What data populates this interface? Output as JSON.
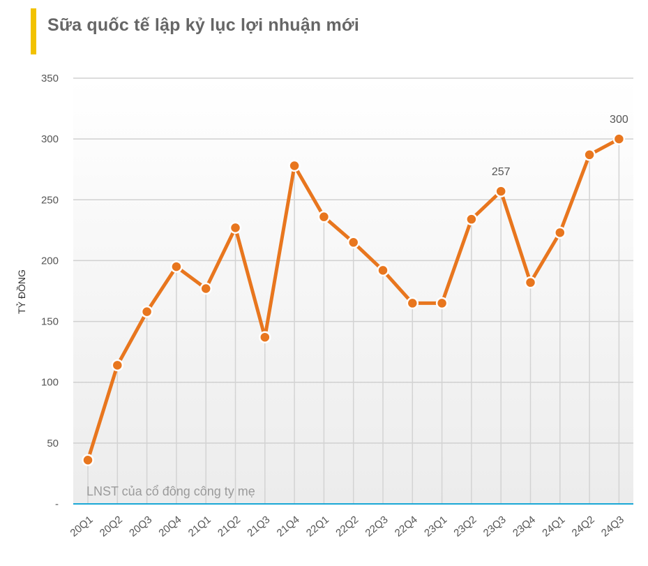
{
  "chart_data": {
    "type": "line",
    "title": "Sữa quốc tế lập kỷ lục lợi nhuận mới",
    "ylabel": "TỶ ĐỒNG",
    "xlabel": "",
    "ylim": [
      0,
      350
    ],
    "yticks": [
      {
        "value": 0,
        "label": "-"
      },
      {
        "value": 50,
        "label": "50"
      },
      {
        "value": 100,
        "label": "100"
      },
      {
        "value": 150,
        "label": "150"
      },
      {
        "value": 200,
        "label": "200"
      },
      {
        "value": 250,
        "label": "250"
      },
      {
        "value": 300,
        "label": "300"
      },
      {
        "value": 350,
        "label": "350"
      }
    ],
    "categories": [
      "20Q1",
      "20Q2",
      "20Q3",
      "20Q4",
      "21Q1",
      "21Q2",
      "21Q3",
      "21Q4",
      "22Q1",
      "22Q2",
      "22Q3",
      "22Q4",
      "23Q1",
      "23Q2",
      "23Q3",
      "23Q4",
      "24Q1",
      "24Q2",
      "24Q3"
    ],
    "series": [
      {
        "name": "LNST của cổ đông công ty mẹ",
        "color": "#e8761e",
        "values": [
          36,
          114,
          158,
          195,
          177,
          227,
          137,
          278,
          236,
          215,
          192,
          165,
          165,
          234,
          257,
          182,
          223,
          287,
          300
        ]
      }
    ],
    "data_labels": [
      {
        "index": 14,
        "text": "257"
      },
      {
        "index": 18,
        "text": "300"
      }
    ],
    "grid": true,
    "legend": "bottom-left"
  }
}
